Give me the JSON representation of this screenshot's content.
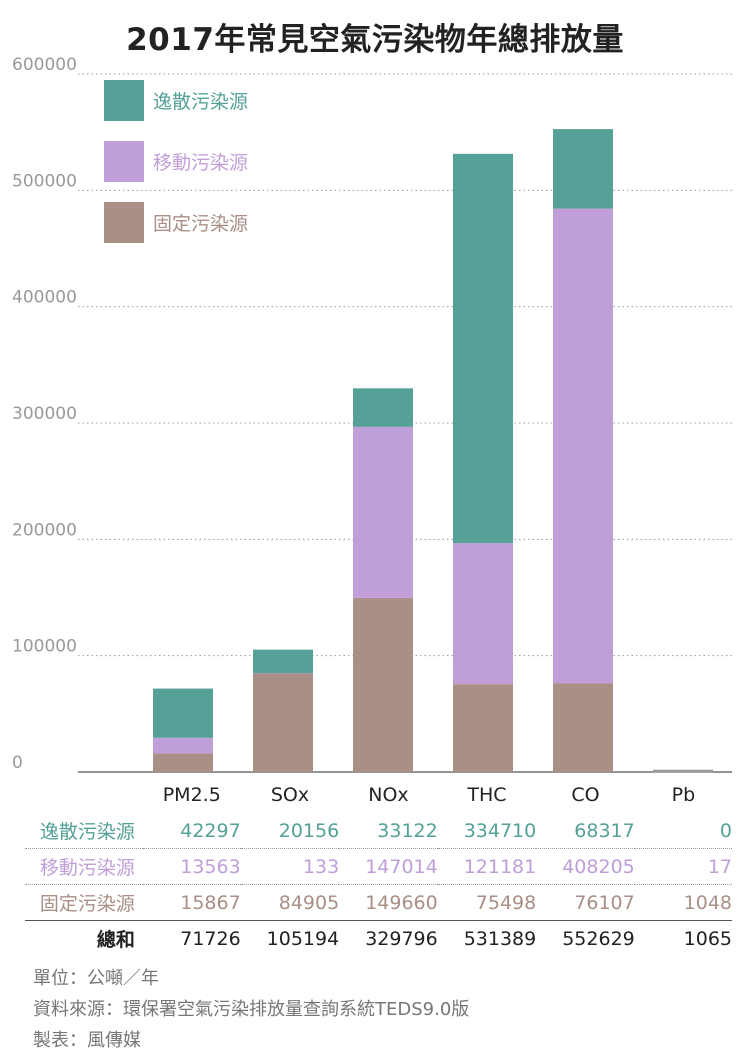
{
  "chart_data": {
    "type": "bar",
    "stacked": true,
    "title": "2017年常見空氣污染物年總排放量",
    "categories": [
      "PM2.5",
      "SOx",
      "NOx",
      "THC",
      "CO",
      "Pb"
    ],
    "ylim": [
      0,
      600000
    ],
    "yticks": [
      0,
      100000,
      200000,
      300000,
      400000,
      500000,
      600000
    ],
    "grid": true,
    "legend_position": "top-left",
    "series": [
      {
        "name": "固定污染源",
        "color": "#a98f86",
        "values": [
          15867,
          84905,
          149660,
          75498,
          76107,
          1048
        ]
      },
      {
        "name": "移動污染源",
        "color": "#c09fd8",
        "values": [
          13563,
          133,
          147014,
          121181,
          408205,
          17
        ]
      },
      {
        "name": "逸散污染源",
        "color": "#55a197",
        "values": [
          42297,
          20156,
          33122,
          334710,
          68317,
          0
        ]
      }
    ],
    "totals_label": "總和",
    "totals": [
      71726,
      105194,
      329796,
      531389,
      552629,
      1065
    ]
  },
  "notes": {
    "unit": "單位：公噸／年",
    "source": "資料來源：環保署空氣污染排放量查詢系統TEDS9.0版",
    "maker": "製表：風傳媒"
  }
}
